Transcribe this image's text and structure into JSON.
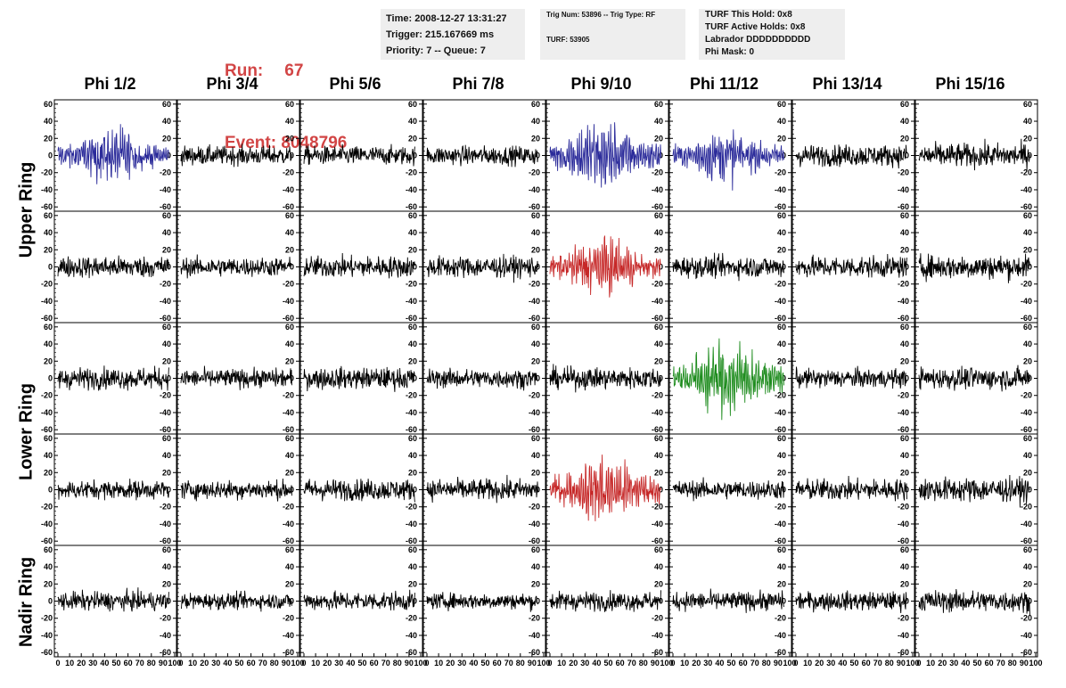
{
  "run_info": {
    "run_label": "Run:",
    "run_value": "67",
    "event_label": "Event:",
    "event_value": "8048796"
  },
  "time_box": {
    "time": "Time: 2008-12-27 13:31:27",
    "trigger": "Trigger: 215.167669 ms",
    "priority": "Priority: 7 -- Queue: 7"
  },
  "trig_box": {
    "trig": "Trig Num: 53896 -- Trig Type: RF",
    "turf": "TURF: 53905"
  },
  "turf_box": {
    "this_hold": "TURF This Hold: 0x8",
    "active_holds": "TURF Active Holds: 0x8",
    "labrador": "Labrador DDDDDDDDDD",
    "phi_mask": "Phi Mask: 0"
  },
  "columns": [
    "Phi 1/2",
    "Phi 3/4",
    "Phi 5/6",
    "Phi 7/8",
    "Phi 9/10",
    "Phi 11/12",
    "Phi 13/14",
    "Phi 15/16"
  ],
  "ring_labels": [
    "Upper Ring",
    "Lower Ring",
    "Nadir Ring"
  ],
  "colors": {
    "run": "#d24545",
    "normal": "#000000",
    "upper_trigger": "#2b2b9a",
    "lower_trigger": "#c62828",
    "green": "#1e8c1e",
    "box_bg": "#eeeeee"
  },
  "chart_data": {
    "type": "line",
    "description_rows": [
      "Upper Ring row 1",
      "Upper Ring row 2",
      "Lower Ring row 1",
      "Lower Ring row 2",
      "Nadir Ring"
    ],
    "ylim": [
      -65,
      65
    ],
    "y_ticks": [
      -60,
      -40,
      -20,
      0,
      20,
      40,
      60
    ],
    "xlim": [
      0,
      100
    ],
    "x_ticks": [
      0,
      10,
      20,
      30,
      40,
      50,
      60,
      70,
      80,
      90,
      100
    ],
    "x_tick_labels": [
      "0",
      "10",
      "20",
      "30",
      "40",
      "50",
      "60",
      "70",
      "80",
      "90",
      "100"
    ],
    "panel_colors": [
      [
        "upper_trigger",
        "normal",
        "normal",
        "normal",
        "upper_trigger",
        "upper_trigger",
        "normal",
        "normal"
      ],
      [
        "normal",
        "normal",
        "normal",
        "normal",
        "lower_trigger",
        "normal",
        "normal",
        "normal"
      ],
      [
        "normal",
        "normal",
        "normal",
        "normal",
        "normal",
        "green",
        "normal",
        "normal"
      ],
      [
        "normal",
        "normal",
        "normal",
        "normal",
        "lower_trigger",
        "normal",
        "normal",
        "normal"
      ],
      [
        "normal",
        "normal",
        "normal",
        "normal",
        "normal",
        "normal",
        "normal",
        "normal"
      ]
    ],
    "panel_amplitudes": [
      [
        22,
        14,
        14,
        14,
        28,
        20,
        16,
        18
      ],
      [
        16,
        14,
        16,
        16,
        22,
        16,
        16,
        18
      ],
      [
        16,
        14,
        16,
        14,
        16,
        30,
        14,
        16
      ],
      [
        14,
        14,
        16,
        16,
        26,
        14,
        16,
        18
      ],
      [
        14,
        12,
        14,
        12,
        14,
        14,
        14,
        16
      ]
    ]
  }
}
